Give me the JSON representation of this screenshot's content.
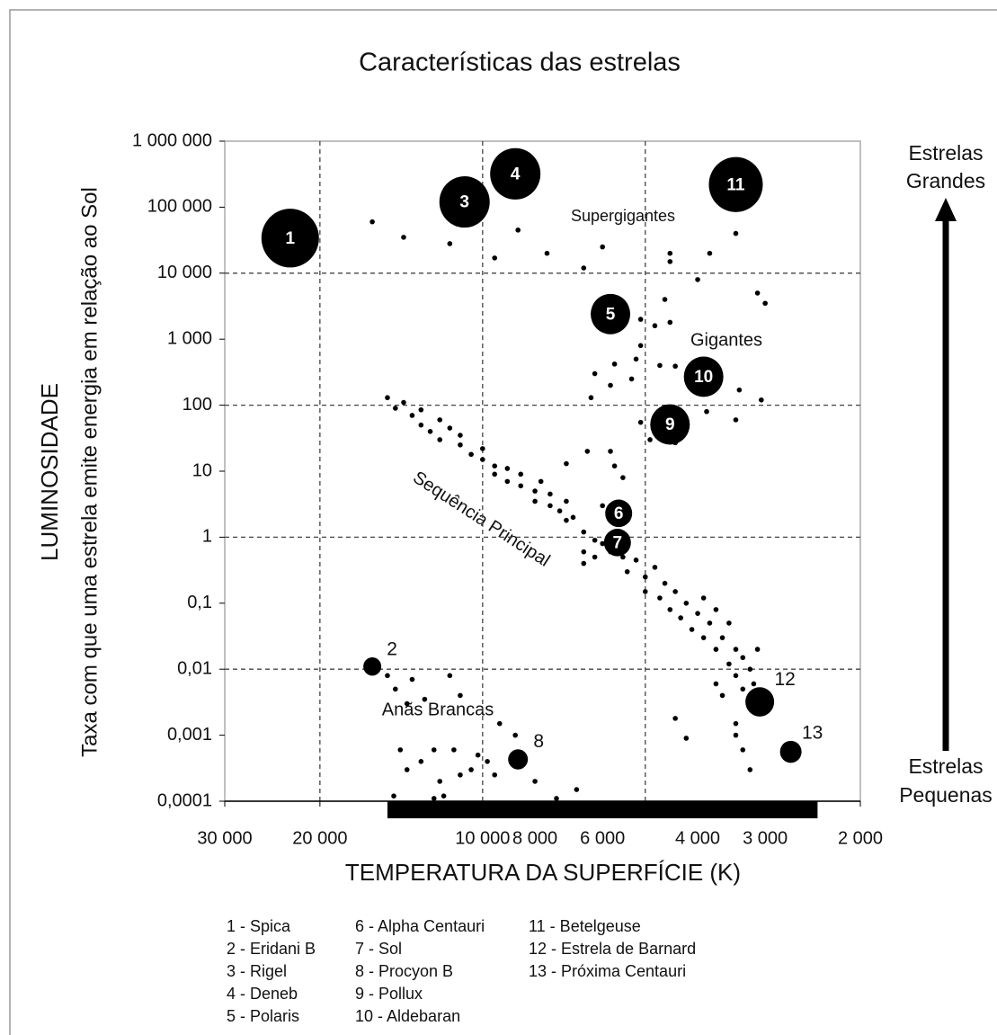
{
  "chart_data": {
    "type": "scatter",
    "title": "Características das estrelas",
    "ylabel": "LUMINOSIDADE",
    "ylabel_sub": "Taxa com que uma estrela emite energia em relação ao Sol",
    "xlabel": "TEMPERATURA DA SUPERFÍCIE (K)",
    "xscale": "log",
    "yscale": "log",
    "xlim": [
      30000,
      2000
    ],
    "ylim": [
      0.0001,
      1000000
    ],
    "xticks": [
      {
        "value": 30000,
        "label": "30 000"
      },
      {
        "value": 20000,
        "label": "20 000"
      },
      {
        "value": 10000,
        "label": "10 000"
      },
      {
        "value": 8000,
        "label": "8 000"
      },
      {
        "value": 6000,
        "label": "6 000"
      },
      {
        "value": 4000,
        "label": "4 000"
      },
      {
        "value": 3000,
        "label": "3 000"
      },
      {
        "value": 2000,
        "label": "2 000"
      }
    ],
    "yticks": [
      {
        "value": 1000000,
        "label": "1 000 000"
      },
      {
        "value": 100000,
        "label": "100 000"
      },
      {
        "value": 10000,
        "label": "10 000"
      },
      {
        "value": 1000,
        "label": "1 000"
      },
      100,
      10,
      1,
      {
        "value": 0.1,
        "label": "0,1"
      },
      {
        "value": 0.01,
        "label": "0,01"
      },
      {
        "value": 0.001,
        "label": "0,001"
      },
      {
        "value": 0.0001,
        "label": "0,0001"
      }
    ],
    "xgrid": [
      20000,
      10000,
      5000
    ],
    "ygrid": [
      10000,
      100,
      1,
      0.01
    ],
    "temperature_bar": [
      15000,
      2400
    ],
    "color": "#000000",
    "annotations": [
      "Supergigantes",
      "Gigantes",
      "Sequência Principal",
      "Anãs Brancas"
    ],
    "side_labels": {
      "top": [
        "Estrelas",
        "Grandes"
      ],
      "bottom": [
        "Estrelas",
        "Pequenas"
      ]
    },
    "stars": {
      "labels": [
        1,
        2,
        3,
        4,
        5,
        6,
        7,
        8,
        9,
        10,
        11,
        12,
        13
      ],
      "x": [
        22700,
        16000,
        10800,
        8700,
        5800,
        5600,
        5630,
        8600,
        4500,
        3900,
        3400,
        3070,
        2690
      ],
      "y": [
        34000,
        0.011,
        120000,
        320000,
        2400,
        2.3,
        0.83,
        0.00043,
        51,
        270,
        220000,
        0.0032,
        0.00056
      ],
      "sizes": [
        32,
        10,
        28,
        28,
        22,
        15,
        15,
        11,
        22,
        22,
        30,
        16,
        12
      ]
    },
    "points": [
      [
        15000,
        130
      ],
      [
        14500,
        90
      ],
      [
        14000,
        110
      ],
      [
        13500,
        70
      ],
      [
        13000,
        50
      ],
      [
        13000,
        85
      ],
      [
        12500,
        40
      ],
      [
        12000,
        60
      ],
      [
        12000,
        30
      ],
      [
        11500,
        45
      ],
      [
        11000,
        25
      ],
      [
        11000,
        35
      ],
      [
        10500,
        18
      ],
      [
        10000,
        15
      ],
      [
        10000,
        22
      ],
      [
        9500,
        12
      ],
      [
        9500,
        9
      ],
      [
        9000,
        11
      ],
      [
        9000,
        7
      ],
      [
        8500,
        6
      ],
      [
        8500,
        9
      ],
      [
        8000,
        5
      ],
      [
        8000,
        3.5
      ],
      [
        7800,
        7
      ],
      [
        7500,
        3
      ],
      [
        7500,
        4.5
      ],
      [
        7200,
        2.5
      ],
      [
        7000,
        3.5
      ],
      [
        7000,
        1.8
      ],
      [
        6800,
        2
      ],
      [
        6500,
        1.2
      ],
      [
        6500,
        0.6
      ],
      [
        6500,
        0.4
      ],
      [
        6200,
        0.9
      ],
      [
        6200,
        0.5
      ],
      [
        6000,
        3
      ],
      [
        6000,
        0.8
      ],
      [
        5800,
        0.6
      ],
      [
        5500,
        0.5
      ],
      [
        5400,
        0.3
      ],
      [
        5200,
        0.45
      ],
      [
        5000,
        0.25
      ],
      [
        5000,
        0.15
      ],
      [
        4800,
        0.35
      ],
      [
        4700,
        0.12
      ],
      [
        4600,
        0.2
      ],
      [
        4500,
        0.08
      ],
      [
        4400,
        0.15
      ],
      [
        4300,
        0.06
      ],
      [
        4200,
        0.1
      ],
      [
        4100,
        0.04
      ],
      [
        4000,
        0.07
      ],
      [
        3900,
        0.03
      ],
      [
        3900,
        0.12
      ],
      [
        3800,
        0.05
      ],
      [
        3700,
        0.02
      ],
      [
        3700,
        0.08
      ],
      [
        3600,
        0.03
      ],
      [
        3500,
        0.012
      ],
      [
        3500,
        0.05
      ],
      [
        3400,
        0.02
      ],
      [
        3400,
        0.008
      ],
      [
        3300,
        0.015
      ],
      [
        3300,
        0.005
      ],
      [
        3200,
        0.01
      ],
      [
        3200,
        0.003
      ],
      [
        3150,
        0.006
      ],
      [
        3100,
        0.02
      ],
      [
        3600,
        0.004
      ],
      [
        3700,
        0.006
      ],
      [
        3400,
        0.001
      ],
      [
        3300,
        0.0006
      ],
      [
        3200,
        0.0003
      ],
      [
        3400,
        0.0015
      ],
      [
        4400,
        0.0018
      ],
      [
        4200,
        0.0009
      ],
      [
        16000,
        60000
      ],
      [
        14000,
        35000
      ],
      [
        11500,
        28000
      ],
      [
        9500,
        17000
      ],
      [
        8600,
        45000
      ],
      [
        7600,
        20000
      ],
      [
        6500,
        12000
      ],
      [
        6000,
        25000
      ],
      [
        4500,
        20000
      ],
      [
        4500,
        15000
      ],
      [
        4000,
        8000
      ],
      [
        3800,
        20000
      ],
      [
        3400,
        40000
      ],
      [
        3100,
        5000
      ],
      [
        3000,
        3500
      ],
      [
        4600,
        4000
      ],
      [
        4500,
        1800
      ],
      [
        4800,
        1600
      ],
      [
        5100,
        2000
      ],
      [
        5100,
        800
      ],
      [
        5200,
        500
      ],
      [
        5700,
        420
      ],
      [
        6200,
        300
      ],
      [
        5800,
        200
      ],
      [
        6300,
        130
      ],
      [
        5300,
        250
      ],
      [
        4700,
        400
      ],
      [
        4400,
        390
      ],
      [
        3800,
        400
      ],
      [
        3350,
        170
      ],
      [
        3050,
        120
      ],
      [
        3400,
        60
      ],
      [
        3850,
        80
      ],
      [
        4400,
        27
      ],
      [
        4900,
        30
      ],
      [
        5100,
        55
      ],
      [
        6400,
        20
      ],
      [
        5800,
        20
      ],
      [
        5500,
        8
      ],
      [
        5700,
        12
      ],
      [
        7000,
        13
      ],
      [
        15000,
        0.008
      ],
      [
        14500,
        0.005
      ],
      [
        13500,
        0.007
      ],
      [
        13800,
        0.003
      ],
      [
        12800,
        0.0035
      ],
      [
        11500,
        0.008
      ],
      [
        11000,
        0.004
      ],
      [
        9300,
        0.0015
      ],
      [
        8700,
        0.001
      ],
      [
        14200,
        0.0006
      ],
      [
        13800,
        0.0003
      ],
      [
        13000,
        0.0004
      ],
      [
        12300,
        0.0006
      ],
      [
        12000,
        0.0002
      ],
      [
        11300,
        0.0006
      ],
      [
        11800,
        0.00012
      ],
      [
        11000,
        0.00025
      ],
      [
        10500,
        0.0003
      ],
      [
        10200,
        0.0005
      ],
      [
        9500,
        0.00025
      ],
      [
        14600,
        0.00012
      ],
      [
        12300,
        0.00011
      ],
      [
        8000,
        0.0002
      ],
      [
        7300,
        0.00011
      ],
      [
        6700,
        0.00015
      ],
      [
        9800,
        0.0004
      ]
    ],
    "legend": [
      "1 - Spica",
      "2 - Eridani B",
      "3 - Rigel",
      "4 - Deneb",
      "5 - Polaris",
      "6 - Alpha Centauri",
      "7 - Sol",
      "8 - Procyon B",
      "9 - Pollux",
      "10 - Aldebaran",
      "11 - Betelgeuse",
      "12 - Estrela de Barnard",
      "13 - Próxima Centauri"
    ]
  }
}
